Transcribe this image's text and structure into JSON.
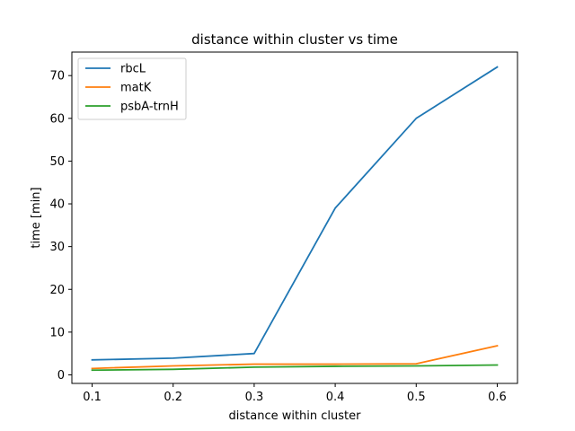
{
  "chart_data": {
    "type": "line",
    "title": "distance within cluster vs time",
    "xlabel": "distance within cluster",
    "ylabel": "time [min]",
    "xlim": [
      0.075,
      0.625
    ],
    "ylim": [
      -2.0,
      75.5
    ],
    "xticks": [
      0.1,
      0.2,
      0.3,
      0.4,
      0.5,
      0.6
    ],
    "xtick_labels": [
      "0.1",
      "0.2",
      "0.3",
      "0.4",
      "0.5",
      "0.6"
    ],
    "yticks": [
      0,
      10,
      20,
      30,
      40,
      50,
      60,
      70
    ],
    "ytick_labels": [
      "0",
      "10",
      "20",
      "30",
      "40",
      "50",
      "60",
      "70"
    ],
    "grid": false,
    "legend_position": "upper-left",
    "x": [
      0.1,
      0.2,
      0.3,
      0.4,
      0.5,
      0.6
    ],
    "series": [
      {
        "name": "rbcL",
        "color": "#1f77b4",
        "values": [
          3.5,
          3.9,
          5.0,
          39.0,
          60.0,
          72.0
        ]
      },
      {
        "name": "matK",
        "color": "#ff7f0e",
        "values": [
          1.5,
          2.1,
          2.5,
          2.5,
          2.6,
          6.8
        ]
      },
      {
        "name": "psbA-trnH",
        "color": "#2ca02c",
        "values": [
          1.1,
          1.3,
          1.8,
          2.0,
          2.1,
          2.3
        ]
      }
    ]
  }
}
